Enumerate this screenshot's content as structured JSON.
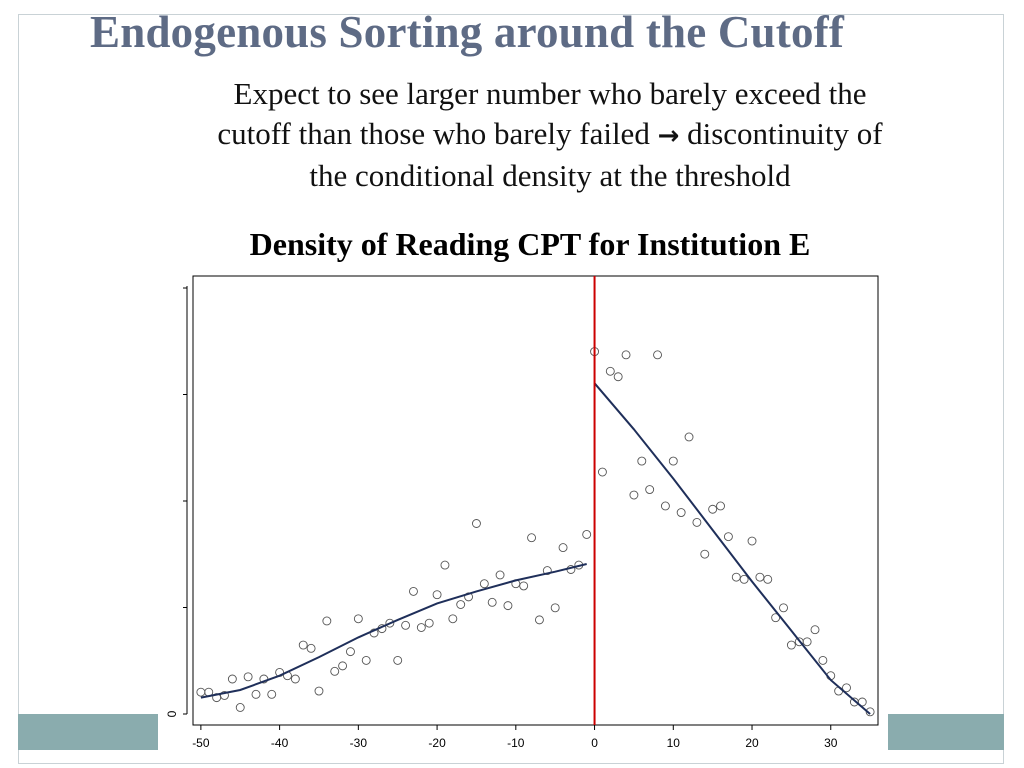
{
  "slide": {
    "title": "Endogenous Sorting around the Cutoff",
    "subtitle_lines": [
      "Expect to see larger number who barely exceed the",
      "cutoff than those who barely failed",
      "discontinuity of",
      "the conditional density at the threshold"
    ],
    "arrow": "→"
  },
  "colors": {
    "title": "#5e6b85",
    "fit_line": "#1f2f5a",
    "cutoff_line": "#cc0000",
    "band": "#8aacae"
  },
  "chart_data": {
    "type": "scatter",
    "title": "Density of Reading CPT for Institution E",
    "xlabel": "",
    "ylabel": "",
    "xlim": [
      -51,
      36
    ],
    "ylim": [
      -0.1,
      4.0
    ],
    "x_ticks": [
      -50,
      -40,
      -30,
      -20,
      -10,
      0,
      10,
      20,
      30
    ],
    "y_tick_labels": [
      "0"
    ],
    "cutoff_x": 0,
    "grid": false,
    "legend": "none",
    "scatter_points": [
      [
        -50,
        0.2
      ],
      [
        -49,
        0.2
      ],
      [
        -48,
        0.15
      ],
      [
        -47,
        0.17
      ],
      [
        -46,
        0.32
      ],
      [
        -45,
        0.06
      ],
      [
        -44,
        0.34
      ],
      [
        -43,
        0.18
      ],
      [
        -42,
        0.32
      ],
      [
        -41,
        0.18
      ],
      [
        -40,
        0.38
      ],
      [
        -39,
        0.35
      ],
      [
        -38,
        0.32
      ],
      [
        -37,
        0.63
      ],
      [
        -36,
        0.6
      ],
      [
        -35,
        0.21
      ],
      [
        -34,
        0.85
      ],
      [
        -33,
        0.39
      ],
      [
        -32,
        0.44
      ],
      [
        -31,
        0.57
      ],
      [
        -30,
        0.87
      ],
      [
        -29,
        0.49
      ],
      [
        -28,
        0.74
      ],
      [
        -27,
        0.78
      ],
      [
        -26,
        0.83
      ],
      [
        -25,
        0.49
      ],
      [
        -24,
        0.81
      ],
      [
        -23,
        1.12
      ],
      [
        -22,
        0.79
      ],
      [
        -21,
        0.83
      ],
      [
        -20,
        1.09
      ],
      [
        -19,
        1.36
      ],
      [
        -18,
        0.87
      ],
      [
        -17,
        1.0
      ],
      [
        -16,
        1.07
      ],
      [
        -15,
        1.74
      ],
      [
        -14,
        1.19
      ],
      [
        -13,
        1.02
      ],
      [
        -12,
        1.27
      ],
      [
        -11,
        0.99
      ],
      [
        -10,
        1.19
      ],
      [
        -9,
        1.17
      ],
      [
        -8,
        1.61
      ],
      [
        -7,
        0.86
      ],
      [
        -6,
        1.31
      ],
      [
        -5,
        0.97
      ],
      [
        -4,
        1.52
      ],
      [
        -3,
        1.32
      ],
      [
        -2,
        1.36
      ],
      [
        -1,
        1.64
      ],
      [
        0,
        3.31
      ],
      [
        1,
        2.21
      ],
      [
        2,
        3.13
      ],
      [
        3,
        3.08
      ],
      [
        4,
        3.28
      ],
      [
        5,
        2.0
      ],
      [
        6,
        2.31
      ],
      [
        7,
        2.05
      ],
      [
        8,
        3.28
      ],
      [
        9,
        1.9
      ],
      [
        10,
        2.31
      ],
      [
        11,
        1.84
      ],
      [
        12,
        2.53
      ],
      [
        13,
        1.75
      ],
      [
        14,
        1.46
      ],
      [
        15,
        1.87
      ],
      [
        16,
        1.9
      ],
      [
        17,
        1.62
      ],
      [
        18,
        1.25
      ],
      [
        19,
        1.23
      ],
      [
        20,
        1.58
      ],
      [
        21,
        1.25
      ],
      [
        22,
        1.23
      ],
      [
        23,
        0.88
      ],
      [
        24,
        0.97
      ],
      [
        25,
        0.63
      ],
      [
        26,
        0.66
      ],
      [
        27,
        0.66
      ],
      [
        28,
        0.77
      ],
      [
        29,
        0.49
      ],
      [
        30,
        0.35
      ],
      [
        31,
        0.21
      ],
      [
        32,
        0.24
      ],
      [
        33,
        0.11
      ],
      [
        34,
        0.11
      ],
      [
        35,
        0.02
      ]
    ],
    "fit_left": [
      [
        -50,
        0.15
      ],
      [
        -45,
        0.22
      ],
      [
        -40,
        0.35
      ],
      [
        -35,
        0.52
      ],
      [
        -30,
        0.7
      ],
      [
        -25,
        0.86
      ],
      [
        -20,
        1.01
      ],
      [
        -15,
        1.12
      ],
      [
        -10,
        1.22
      ],
      [
        -5,
        1.3
      ],
      [
        -1,
        1.37
      ]
    ],
    "fit_right": [
      [
        0,
        3.02
      ],
      [
        5,
        2.6
      ],
      [
        10,
        2.15
      ],
      [
        15,
        1.68
      ],
      [
        20,
        1.21
      ],
      [
        25,
        0.76
      ],
      [
        30,
        0.31
      ],
      [
        35,
        0.0
      ]
    ]
  }
}
